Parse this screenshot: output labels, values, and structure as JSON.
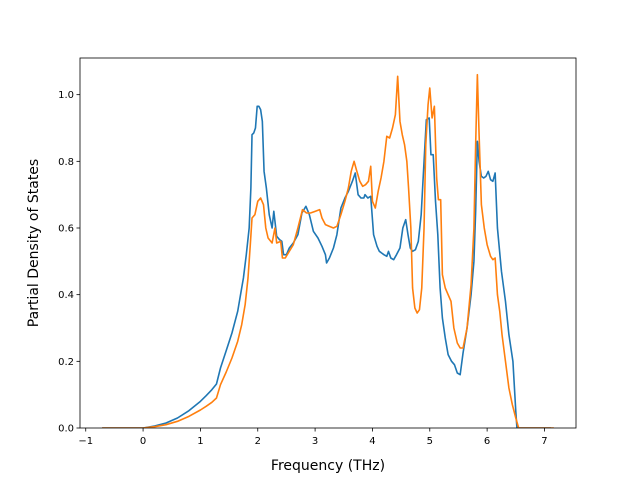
{
  "chart_data": {
    "type": "line",
    "title": "",
    "xlabel": "Frequency (THz)",
    "ylabel": "Partial Density of States",
    "xlim": [
      -1.1,
      7.55
    ],
    "ylim": [
      0.0,
      1.11
    ],
    "xticks": [
      -1,
      0,
      1,
      2,
      3,
      4,
      5,
      6,
      7
    ],
    "xtick_labels": [
      "−1",
      "0",
      "1",
      "2",
      "3",
      "4",
      "5",
      "6",
      "7"
    ],
    "yticks": [
      0.0,
      0.2,
      0.4,
      0.6,
      0.8,
      1.0
    ],
    "ytick_labels": [
      "0.0",
      "0.2",
      "0.4",
      "0.6",
      "0.8",
      "1.0"
    ],
    "grid": false,
    "legend": "none",
    "series": [
      {
        "color": "#1f77b4",
        "points": [
          [
            -0.7,
            0.0
          ],
          [
            0.0,
            0.0
          ],
          [
            0.2,
            0.006
          ],
          [
            0.4,
            0.015
          ],
          [
            0.6,
            0.03
          ],
          [
            0.8,
            0.052
          ],
          [
            1.0,
            0.08
          ],
          [
            1.1,
            0.097
          ],
          [
            1.2,
            0.115
          ],
          [
            1.28,
            0.132
          ],
          [
            1.35,
            0.18
          ],
          [
            1.45,
            0.232
          ],
          [
            1.55,
            0.285
          ],
          [
            1.65,
            0.35
          ],
          [
            1.7,
            0.4
          ],
          [
            1.75,
            0.45
          ],
          [
            1.8,
            0.52
          ],
          [
            1.85,
            0.6
          ],
          [
            1.88,
            0.72
          ],
          [
            1.9,
            0.88
          ],
          [
            1.93,
            0.885
          ],
          [
            1.96,
            0.9
          ],
          [
            1.99,
            0.965
          ],
          [
            2.02,
            0.965
          ],
          [
            2.05,
            0.955
          ],
          [
            2.08,
            0.92
          ],
          [
            2.11,
            0.77
          ],
          [
            2.15,
            0.72
          ],
          [
            2.2,
            0.64
          ],
          [
            2.25,
            0.6
          ],
          [
            2.28,
            0.65
          ],
          [
            2.33,
            0.575
          ],
          [
            2.38,
            0.565
          ],
          [
            2.42,
            0.56
          ],
          [
            2.45,
            0.52
          ],
          [
            2.5,
            0.52
          ],
          [
            2.55,
            0.54
          ],
          [
            2.62,
            0.555
          ],
          [
            2.7,
            0.58
          ],
          [
            2.77,
            0.645
          ],
          [
            2.84,
            0.665
          ],
          [
            2.9,
            0.64
          ],
          [
            2.97,
            0.59
          ],
          [
            3.05,
            0.57
          ],
          [
            3.12,
            0.545
          ],
          [
            3.18,
            0.52
          ],
          [
            3.2,
            0.495
          ],
          [
            3.25,
            0.51
          ],
          [
            3.32,
            0.54
          ],
          [
            3.38,
            0.58
          ],
          [
            3.45,
            0.66
          ],
          [
            3.52,
            0.69
          ],
          [
            3.58,
            0.71
          ],
          [
            3.65,
            0.74
          ],
          [
            3.7,
            0.765
          ],
          [
            3.75,
            0.7
          ],
          [
            3.8,
            0.69
          ],
          [
            3.85,
            0.69
          ],
          [
            3.87,
            0.7
          ],
          [
            3.92,
            0.69
          ],
          [
            3.97,
            0.695
          ],
          [
            4.02,
            0.58
          ],
          [
            4.08,
            0.545
          ],
          [
            4.12,
            0.53
          ],
          [
            4.2,
            0.52
          ],
          [
            4.25,
            0.515
          ],
          [
            4.28,
            0.53
          ],
          [
            4.32,
            0.51
          ],
          [
            4.37,
            0.505
          ],
          [
            4.42,
            0.52
          ],
          [
            4.48,
            0.54
          ],
          [
            4.53,
            0.6
          ],
          [
            4.58,
            0.625
          ],
          [
            4.62,
            0.58
          ],
          [
            4.66,
            0.54
          ],
          [
            4.7,
            0.53
          ],
          [
            4.75,
            0.535
          ],
          [
            4.8,
            0.56
          ],
          [
            4.85,
            0.64
          ],
          [
            4.9,
            0.8
          ],
          [
            4.94,
            0.925
          ],
          [
            4.99,
            0.93
          ],
          [
            5.02,
            0.82
          ],
          [
            5.06,
            0.82
          ],
          [
            5.1,
            0.68
          ],
          [
            5.14,
            0.58
          ],
          [
            5.18,
            0.42
          ],
          [
            5.22,
            0.33
          ],
          [
            5.27,
            0.27
          ],
          [
            5.32,
            0.22
          ],
          [
            5.38,
            0.2
          ],
          [
            5.43,
            0.19
          ],
          [
            5.48,
            0.165
          ],
          [
            5.53,
            0.16
          ],
          [
            5.58,
            0.225
          ],
          [
            5.65,
            0.3
          ],
          [
            5.72,
            0.4
          ],
          [
            5.77,
            0.5
          ],
          [
            5.8,
            0.65
          ],
          [
            5.83,
            0.86
          ],
          [
            5.86,
            0.8
          ],
          [
            5.9,
            0.755
          ],
          [
            5.94,
            0.75
          ],
          [
            5.98,
            0.755
          ],
          [
            6.02,
            0.77
          ],
          [
            6.06,
            0.745
          ],
          [
            6.1,
            0.74
          ],
          [
            6.14,
            0.765
          ],
          [
            6.18,
            0.6
          ],
          [
            6.25,
            0.47
          ],
          [
            6.32,
            0.38
          ],
          [
            6.38,
            0.28
          ],
          [
            6.45,
            0.2
          ],
          [
            6.5,
            0.05
          ],
          [
            6.52,
            0.0
          ],
          [
            7.1,
            0.0
          ]
        ]
      },
      {
        "color": "#ff7f0e",
        "points": [
          [
            -0.7,
            0.0
          ],
          [
            0.0,
            0.0
          ],
          [
            0.2,
            0.004
          ],
          [
            0.4,
            0.01
          ],
          [
            0.6,
            0.02
          ],
          [
            0.8,
            0.035
          ],
          [
            1.0,
            0.054
          ],
          [
            1.1,
            0.065
          ],
          [
            1.2,
            0.077
          ],
          [
            1.28,
            0.09
          ],
          [
            1.35,
            0.13
          ],
          [
            1.45,
            0.168
          ],
          [
            1.55,
            0.21
          ],
          [
            1.65,
            0.26
          ],
          [
            1.72,
            0.31
          ],
          [
            1.78,
            0.37
          ],
          [
            1.83,
            0.45
          ],
          [
            1.87,
            0.55
          ],
          [
            1.9,
            0.63
          ],
          [
            1.95,
            0.64
          ],
          [
            2.0,
            0.68
          ],
          [
            2.05,
            0.69
          ],
          [
            2.1,
            0.67
          ],
          [
            2.14,
            0.6
          ],
          [
            2.18,
            0.57
          ],
          [
            2.25,
            0.555
          ],
          [
            2.3,
            0.6
          ],
          [
            2.33,
            0.555
          ],
          [
            2.4,
            0.56
          ],
          [
            2.43,
            0.51
          ],
          [
            2.48,
            0.51
          ],
          [
            2.55,
            0.53
          ],
          [
            2.62,
            0.55
          ],
          [
            2.7,
            0.6
          ],
          [
            2.78,
            0.655
          ],
          [
            2.85,
            0.645
          ],
          [
            2.92,
            0.645
          ],
          [
            3.0,
            0.65
          ],
          [
            3.08,
            0.655
          ],
          [
            3.12,
            0.63
          ],
          [
            3.18,
            0.61
          ],
          [
            3.25,
            0.605
          ],
          [
            3.32,
            0.6
          ],
          [
            3.38,
            0.605
          ],
          [
            3.45,
            0.64
          ],
          [
            3.52,
            0.68
          ],
          [
            3.58,
            0.72
          ],
          [
            3.63,
            0.77
          ],
          [
            3.68,
            0.8
          ],
          [
            3.72,
            0.775
          ],
          [
            3.78,
            0.74
          ],
          [
            3.83,
            0.725
          ],
          [
            3.88,
            0.73
          ],
          [
            3.93,
            0.74
          ],
          [
            3.97,
            0.785
          ],
          [
            4.0,
            0.68
          ],
          [
            4.05,
            0.66
          ],
          [
            4.1,
            0.71
          ],
          [
            4.15,
            0.75
          ],
          [
            4.2,
            0.8
          ],
          [
            4.25,
            0.875
          ],
          [
            4.3,
            0.87
          ],
          [
            4.35,
            0.9
          ],
          [
            4.4,
            0.94
          ],
          [
            4.44,
            1.055
          ],
          [
            4.48,
            0.92
          ],
          [
            4.52,
            0.88
          ],
          [
            4.56,
            0.85
          ],
          [
            4.6,
            0.8
          ],
          [
            4.63,
            0.72
          ],
          [
            4.67,
            0.6
          ],
          [
            4.7,
            0.42
          ],
          [
            4.74,
            0.36
          ],
          [
            4.78,
            0.345
          ],
          [
            4.82,
            0.355
          ],
          [
            4.86,
            0.42
          ],
          [
            4.9,
            0.6
          ],
          [
            4.93,
            0.85
          ],
          [
            4.97,
            0.97
          ],
          [
            5.0,
            1.02
          ],
          [
            5.04,
            0.93
          ],
          [
            5.08,
            0.965
          ],
          [
            5.12,
            0.75
          ],
          [
            5.15,
            0.685
          ],
          [
            5.19,
            0.685
          ],
          [
            5.22,
            0.46
          ],
          [
            5.27,
            0.42
          ],
          [
            5.32,
            0.4
          ],
          [
            5.37,
            0.38
          ],
          [
            5.42,
            0.3
          ],
          [
            5.48,
            0.255
          ],
          [
            5.53,
            0.24
          ],
          [
            5.58,
            0.24
          ],
          [
            5.65,
            0.3
          ],
          [
            5.72,
            0.43
          ],
          [
            5.77,
            0.6
          ],
          [
            5.8,
            0.85
          ],
          [
            5.83,
            1.06
          ],
          [
            5.86,
            0.88
          ],
          [
            5.9,
            0.67
          ],
          [
            5.95,
            0.6
          ],
          [
            6.0,
            0.55
          ],
          [
            6.06,
            0.515
          ],
          [
            6.1,
            0.505
          ],
          [
            6.14,
            0.51
          ],
          [
            6.18,
            0.4
          ],
          [
            6.22,
            0.35
          ],
          [
            6.26,
            0.28
          ],
          [
            6.32,
            0.2
          ],
          [
            6.38,
            0.12
          ],
          [
            6.44,
            0.07
          ],
          [
            6.5,
            0.03
          ],
          [
            6.55,
            0.0
          ],
          [
            7.15,
            0.0
          ]
        ]
      }
    ]
  }
}
